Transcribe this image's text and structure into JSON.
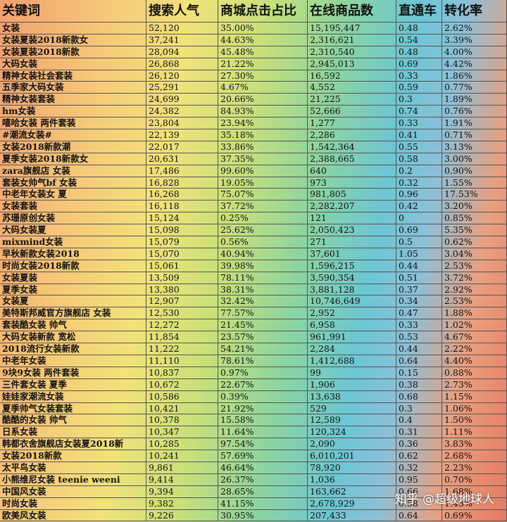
{
  "table": {
    "header": [
      "关键词",
      "搜索人气",
      "商城点击占比",
      "在线商品数",
      "直通车",
      "转化率"
    ],
    "rows": [
      [
        "女装",
        "52,120",
        "35.00%",
        "15,195,447",
        "0.48",
        "2.62%"
      ],
      [
        "女装夏装2018新款女",
        "37,241",
        "44.63%",
        "2,316,621",
        "0.54",
        "3.39%"
      ],
      [
        "女装夏装2018新款",
        "28,094",
        "45.48%",
        "2,310,540",
        "0.48",
        "4.00%"
      ],
      [
        "大码女装",
        "26,868",
        "21.22%",
        "2,945,013",
        "0.69",
        "4.42%"
      ],
      [
        "精神女装社会套装",
        "26,120",
        "27.30%",
        "16,592",
        "0.33",
        "1.86%"
      ],
      [
        "五季家大码女装",
        "25,291",
        "4.67%",
        "4,552",
        "0.59",
        "0.77%"
      ],
      [
        "精神女装套装",
        "24,699",
        "20.66%",
        "21,225",
        "0.3",
        "1.89%"
      ],
      [
        "hm女装",
        "24,382",
        "84.93%",
        "52,666",
        "0.74",
        "0.76%"
      ],
      [
        "嘻哈女装 两件套装",
        "23,804",
        "23.94%",
        "1,277",
        "0.33",
        "1.91%"
      ],
      [
        "#潮流女装#",
        "22,139",
        "35.18%",
        "2,286",
        "0.41",
        "0.71%"
      ],
      [
        "女装2018新款潮",
        "22,017",
        "33.86%",
        "1,542,364",
        "0.55",
        "3.13%"
      ],
      [
        "夏季女装2018新款女",
        "20,631",
        "37.35%",
        "2,388,665",
        "0.58",
        "3.00%"
      ],
      [
        "zara旗舰店 女装",
        "17,486",
        "99.60%",
        "640",
        "0.2",
        "0.90%"
      ],
      [
        "套装女帅气bf 女装",
        "16,828",
        "19.05%",
        "973",
        "0.32",
        "1.55%"
      ],
      [
        "中老年女装女 夏",
        "16,268",
        "75.07%",
        "981,805",
        "0.96",
        "17.53%"
      ],
      [
        "女装套装",
        "16,118",
        "37.72%",
        "2,282,207",
        "0.42",
        "3.20%"
      ],
      [
        "苏珊原创女装",
        "15,124",
        "0.25%",
        "121",
        "0",
        "0.85%"
      ],
      [
        "大码女装夏",
        "15,098",
        "25.62%",
        "2,050,423",
        "0.69",
        "5.35%"
      ],
      [
        "mixmind女装",
        "15,079",
        "0.56%",
        "271",
        "0.5",
        "0.62%"
      ],
      [
        "早秋新款女装2018",
        "15,070",
        "40.94%",
        "37,601",
        "1.05",
        "3.04%"
      ],
      [
        "时尚女装2018新款",
        "15,061",
        "39.98%",
        "1,596,215",
        "0.44",
        "2.53%"
      ],
      [
        "女装夏装",
        "13,509",
        "78.11%",
        "3,590,354",
        "0.51",
        "3.72%"
      ],
      [
        "夏季女装",
        "13,380",
        "38.31%",
        "3,881,128",
        "0.37",
        "2.92%"
      ],
      [
        "女装夏",
        "12,907",
        "32.42%",
        "10,746,649",
        "0.34",
        "2.53%"
      ],
      [
        "美特斯邦威官方旗舰店 女装",
        "12,530",
        "77.57%",
        "2,952",
        "0.47",
        "1.88%"
      ],
      [
        "套装酷女装 帅气",
        "12,272",
        "21.45%",
        "6,958",
        "0.33",
        "1.02%"
      ],
      [
        "大码女装新款 宽松",
        "11,854",
        "23.57%",
        "961,991",
        "0.53",
        "4.67%"
      ],
      [
        "2018流行女装新款",
        "11,222",
        "54.21%",
        "2,284",
        "0.44",
        "2.22%"
      ],
      [
        "中老年女装",
        "11,110",
        "78.61%",
        "1,412,688",
        "0.64",
        "4.40%"
      ],
      [
        "9块9女装 两件套装",
        "10,837",
        "0.97%",
        "99",
        "0.15",
        "0.88%"
      ],
      [
        "三件套女装 夏季",
        "10,672",
        "22.67%",
        "1,906",
        "0.38",
        "2.73%"
      ],
      [
        "娃娃家潮流女装",
        "10,586",
        "0.39%",
        "13,638",
        "0.68",
        "1.15%"
      ],
      [
        "夏季帅气女装套装",
        "10,421",
        "21.92%",
        "529",
        "0.3",
        "1.06%"
      ],
      [
        "酷酷的女装 帅气",
        "10,378",
        "15.58%",
        "12,589",
        "0.4",
        "1.50%"
      ],
      [
        "日系女装",
        "10,347",
        "11.64%",
        "120,324",
        "0.31",
        "1.11%"
      ],
      [
        "韩都衣舍旗舰店女装夏2018新",
        "10,285",
        "97.54%",
        "2,090",
        "0.36",
        "3.83%"
      ],
      [
        "女装2018新款",
        "10,241",
        "57.69%",
        "6,010,201",
        "0.62",
        "2.68%"
      ],
      [
        "太平鸟女装",
        "9,861",
        "46.64%",
        "78,920",
        "0.32",
        "2.23%"
      ],
      [
        "小熊维尼女装 teenie weeni",
        "9,414",
        "26.37%",
        "1,036",
        "0.95",
        "0.70%"
      ],
      [
        "中国风女装",
        "9,394",
        "28.65%",
        "163,662",
        "0.66",
        "1.68%"
      ],
      [
        "时尚女装",
        "9,382",
        "41.15%",
        "2,678,929",
        "0.58",
        "1.43%"
      ],
      [
        "欧美风女装",
        "9,226",
        "30.95%",
        "207,433",
        "0.64",
        "0.69%"
      ]
    ]
  },
  "watermark": "知乎 @超级地球人"
}
